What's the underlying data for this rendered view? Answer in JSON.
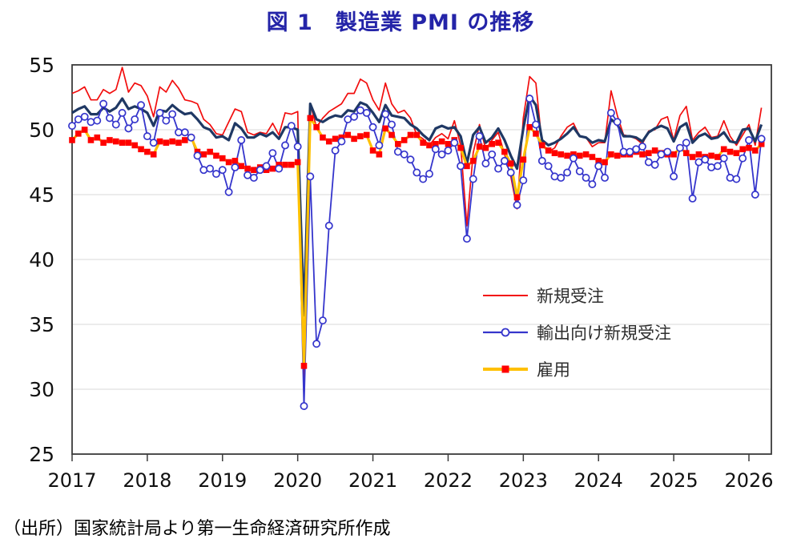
{
  "title": "図 1　製造業 PMI の推移",
  "source": "（出所）国家統計局より第一生命経済研究所作成",
  "chart_data": {
    "type": "line",
    "frequency": "monthly",
    "x_start": "2017-01",
    "x_end": "2026-03",
    "x_labels": [
      "2017",
      "2018",
      "2019",
      "2020",
      "2021",
      "2022",
      "2023",
      "2024",
      "2025",
      "2026"
    ],
    "y_ticks": [
      55,
      50,
      45,
      40,
      35,
      30,
      25
    ],
    "ylim": [
      25,
      55
    ],
    "xlabel": "",
    "ylabel": "",
    "grid": "horizontal",
    "plot_border": true,
    "legend_position": "inside-right-middle",
    "colors": {
      "title": "#2424a8",
      "new_orders": "#f20d0d",
      "pmi_headline": "#1f3864",
      "export_orders": "#3535cc",
      "employment": "#ffc000",
      "employment_marker": "#ff0000",
      "gridline": "#d9d9d9",
      "axis": "#3b3b3b"
    },
    "legend": {
      "items": [
        {
          "label": "新規受注",
          "swatch": "line",
          "color": "#f20d0d"
        },
        {
          "label": "輸出向け新規受注",
          "swatch": "line-circle",
          "color": "#3535cc"
        },
        {
          "label": "雇用",
          "swatch": "line-square",
          "color": "#ffc000",
          "marker_color": "#ff0000"
        }
      ]
    },
    "series": [
      {
        "id": "new-orders",
        "label": "新規受注",
        "color": "#f20d0d",
        "width": 1.7,
        "marker": "none",
        "values": [
          52.8,
          53.0,
          53.3,
          52.3,
          52.3,
          53.1,
          52.8,
          53.1,
          54.8,
          52.9,
          53.6,
          53.4,
          52.6,
          51.0,
          53.3,
          52.9,
          53.8,
          53.2,
          52.3,
          52.2,
          52.0,
          50.8,
          50.4,
          49.7,
          49.6,
          50.6,
          51.6,
          51.4,
          49.8,
          49.6,
          49.8,
          49.7,
          50.5,
          49.6,
          51.3,
          51.2,
          51.4,
          29.3,
          52.0,
          50.2,
          50.9,
          51.4,
          51.7,
          52.0,
          52.8,
          52.8,
          53.9,
          53.6,
          52.3,
          51.5,
          53.6,
          52.0,
          51.3,
          51.5,
          50.9,
          49.6,
          49.3,
          48.8,
          49.4,
          49.7,
          49.3,
          50.7,
          48.8,
          42.6,
          48.2,
          50.4,
          48.5,
          49.2,
          49.8,
          48.1,
          46.4,
          43.9,
          50.9,
          54.1,
          53.6,
          48.8,
          48.3,
          48.6,
          49.5,
          50.2,
          50.5,
          49.5,
          49.4,
          48.7,
          49.0,
          49.0,
          53.0,
          51.1,
          49.6,
          49.5,
          49.3,
          48.9,
          49.9,
          50.0,
          50.8,
          51.0,
          49.2,
          51.1,
          51.8,
          49.2,
          49.8,
          50.2,
          49.4,
          49.5,
          50.7,
          49.5,
          48.8,
          49.6,
          50.4,
          48.8,
          51.7
        ]
      },
      {
        "id": "pmi-headline",
        "label": "",
        "color": "#1f3864",
        "width": 3.2,
        "marker": "none",
        "values": [
          51.3,
          51.6,
          51.8,
          51.2,
          51.2,
          51.7,
          51.4,
          51.7,
          52.4,
          51.6,
          51.8,
          51.6,
          51.3,
          50.3,
          51.5,
          51.4,
          51.9,
          51.5,
          51.2,
          51.3,
          50.8,
          50.2,
          50.0,
          49.4,
          49.5,
          49.2,
          50.5,
          50.1,
          49.4,
          49.4,
          49.7,
          49.5,
          49.8,
          49.3,
          50.2,
          50.2,
          50.0,
          35.7,
          52.0,
          50.8,
          50.6,
          50.9,
          51.1,
          51.0,
          51.5,
          51.4,
          52.1,
          51.9,
          51.3,
          50.6,
          51.9,
          51.1,
          51.0,
          50.9,
          50.4,
          50.1,
          49.6,
          49.2,
          50.1,
          50.3,
          50.1,
          50.2,
          49.5,
          47.4,
          49.6,
          50.2,
          49.0,
          49.4,
          50.1,
          49.2,
          48.0,
          47.0,
          50.1,
          52.6,
          51.9,
          49.2,
          48.8,
          49.0,
          49.3,
          49.7,
          50.2,
          49.5,
          49.4,
          49.0,
          49.2,
          49.1,
          50.8,
          50.4,
          49.5,
          49.5,
          49.4,
          49.1,
          49.8,
          50.1,
          50.3,
          50.1,
          49.1,
          50.2,
          50.5,
          49.0,
          49.5,
          49.7,
          49.3,
          49.4,
          49.8,
          49.1,
          49.0,
          50.0,
          50.1,
          49.1,
          50.4
        ]
      },
      {
        "id": "export-new-orders",
        "label": "輸出向け新規受注",
        "color": "#3535cc",
        "width": 1.8,
        "marker": "circle",
        "values": [
          50.3,
          50.8,
          51.0,
          50.6,
          50.7,
          52.0,
          50.9,
          50.4,
          51.3,
          50.1,
          50.8,
          51.9,
          49.5,
          49.0,
          51.3,
          50.7,
          51.2,
          49.8,
          49.8,
          49.4,
          48.0,
          46.9,
          47.0,
          46.6,
          46.9,
          45.2,
          47.1,
          49.2,
          46.5,
          46.3,
          46.9,
          47.2,
          48.2,
          47.0,
          48.8,
          50.3,
          48.7,
          28.7,
          46.4,
          33.5,
          35.3,
          42.6,
          48.4,
          49.1,
          50.8,
          51.0,
          51.5,
          51.3,
          50.2,
          48.8,
          51.2,
          50.4,
          48.3,
          48.1,
          47.7,
          46.7,
          46.2,
          46.6,
          48.5,
          48.1,
          48.4,
          49.0,
          47.2,
          41.6,
          46.2,
          49.5,
          47.4,
          48.1,
          47.0,
          47.6,
          46.7,
          44.2,
          46.1,
          52.4,
          50.4,
          47.6,
          47.2,
          46.4,
          46.3,
          46.7,
          47.8,
          46.8,
          46.3,
          45.8,
          47.2,
          46.3,
          51.3,
          50.6,
          48.3,
          48.3,
          48.5,
          48.7,
          47.5,
          47.3,
          48.1,
          48.3,
          46.4,
          48.6,
          49.0,
          44.7,
          47.5,
          47.7,
          47.1,
          47.2,
          47.8,
          46.3,
          46.2,
          47.8,
          49.2,
          45.0,
          49.3
        ]
      },
      {
        "id": "employment",
        "label": "雇用",
        "color": "#ffc000",
        "width": 3.2,
        "marker": "square",
        "marker_color": "#ff0000",
        "values": [
          49.2,
          49.7,
          50.0,
          49.2,
          49.4,
          49.0,
          49.2,
          49.1,
          49.0,
          49.0,
          48.8,
          48.5,
          48.3,
          48.1,
          49.1,
          49.0,
          49.1,
          49.0,
          49.2,
          49.4,
          48.3,
          48.1,
          48.3,
          48.0,
          47.8,
          47.5,
          47.6,
          47.2,
          47.0,
          46.9,
          47.1,
          46.9,
          47.0,
          47.3,
          47.3,
          47.3,
          47.5,
          31.8,
          50.9,
          50.2,
          49.4,
          49.1,
          49.3,
          49.4,
          49.6,
          49.3,
          49.5,
          49.6,
          48.4,
          48.1,
          50.1,
          49.6,
          48.9,
          49.2,
          49.6,
          49.6,
          49.0,
          48.8,
          48.9,
          49.1,
          48.9,
          49.2,
          48.6,
          47.2,
          47.6,
          48.7,
          48.6,
          48.9,
          49.0,
          48.3,
          47.4,
          44.8,
          47.7,
          50.2,
          49.7,
          48.8,
          48.4,
          48.2,
          48.1,
          48.0,
          48.1,
          48.0,
          48.1,
          47.9,
          47.6,
          47.5,
          48.1,
          48.0,
          48.1,
          48.1,
          48.3,
          48.1,
          48.2,
          48.4,
          48.2,
          48.1,
          48.1,
          48.6,
          48.2,
          47.9,
          48.1,
          47.9,
          48.0,
          47.9,
          48.5,
          48.3,
          48.2,
          48.5,
          48.6,
          48.4,
          48.9
        ]
      }
    ]
  }
}
